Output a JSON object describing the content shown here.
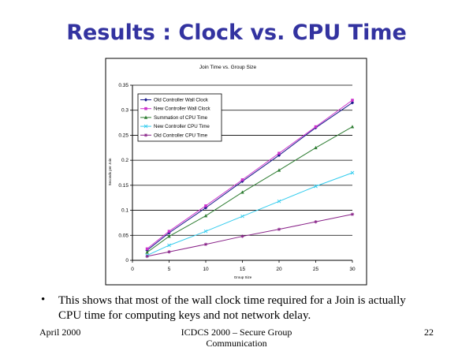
{
  "slide": {
    "title": "Results : Clock vs. CPU Time",
    "bullet_symbol": "•",
    "bullet": "This shows that most of the wall clock time required for a Join is actually CPU time for computing keys and not network delay.",
    "footer_left": "April 2000",
    "footer_center": "ICDCS 2000 – Secure Group Communication",
    "footer_right": "22"
  },
  "chart_data": {
    "type": "line",
    "title": "Join Time vs. Group Size",
    "xlabel": "Group Size",
    "ylabel": "Seconds per Join",
    "xlim": [
      0,
      30
    ],
    "ylim": [
      0,
      0.35
    ],
    "xticks": [
      0,
      5,
      10,
      15,
      20,
      25,
      30
    ],
    "yticks": [
      0,
      0.05,
      0.1,
      0.15,
      0.2,
      0.25,
      0.3,
      0.35
    ],
    "ytick_labels": [
      "0",
      "0.05",
      "0.1",
      "0.15",
      "0.2",
      "0.25",
      "0.3",
      "0.35"
    ],
    "grid": "horizontal",
    "legend_position": "top-left",
    "series": [
      {
        "name": "Old Controller Wall Clock",
        "color": "#1a1a8c",
        "marker": "diamond",
        "x": [
          2,
          5,
          10,
          15,
          20,
          25,
          30
        ],
        "y": [
          0.02,
          0.055,
          0.105,
          0.158,
          0.21,
          0.265,
          0.315
        ]
      },
      {
        "name": "New Controller Wall Clock",
        "color": "#cc33cc",
        "marker": "square",
        "x": [
          2,
          5,
          10,
          15,
          20,
          25,
          30
        ],
        "y": [
          0.023,
          0.058,
          0.109,
          0.161,
          0.214,
          0.267,
          0.32
        ]
      },
      {
        "name": "Summation of CPU Time",
        "color": "#2e7d32",
        "marker": "triangle",
        "x": [
          2,
          5,
          10,
          15,
          20,
          25,
          30
        ],
        "y": [
          0.016,
          0.048,
          0.089,
          0.136,
          0.18,
          0.225,
          0.267
        ]
      },
      {
        "name": "New Controller CPU Time",
        "color": "#33ccee",
        "marker": "x",
        "x": [
          2,
          5,
          10,
          15,
          20,
          25,
          30
        ],
        "y": [
          0.01,
          0.03,
          0.058,
          0.088,
          0.118,
          0.148,
          0.175
        ]
      },
      {
        "name": "Old Controller CPU Time",
        "color": "#882288",
        "marker": "star",
        "x": [
          2,
          5,
          10,
          15,
          20,
          25,
          30
        ],
        "y": [
          0.008,
          0.017,
          0.032,
          0.048,
          0.062,
          0.077,
          0.092
        ]
      }
    ]
  }
}
